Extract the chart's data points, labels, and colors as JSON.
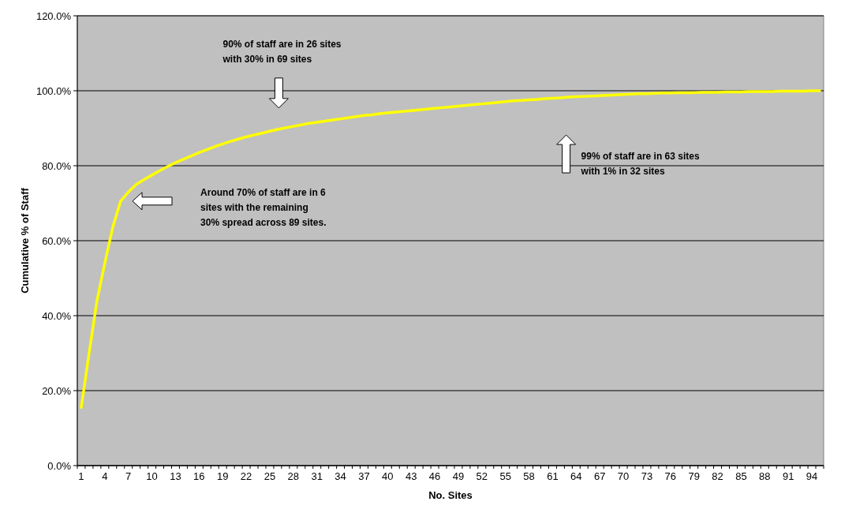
{
  "chart_data": {
    "type": "line",
    "xlabel": "No. Sites",
    "ylabel": "Cumulative % of Staff",
    "categories": [
      "1",
      null,
      null,
      "4",
      null,
      null,
      "7",
      null,
      null,
      "10",
      null,
      null,
      "13",
      null,
      null,
      "16",
      null,
      null,
      "19",
      null,
      null,
      "22",
      null,
      null,
      "25",
      null,
      null,
      "28",
      null,
      null,
      "31",
      null,
      null,
      "34",
      null,
      null,
      "37",
      null,
      null,
      "40",
      null,
      null,
      "43",
      null,
      null,
      "46",
      null,
      null,
      "49",
      null,
      null,
      "52",
      null,
      null,
      "55",
      null,
      null,
      "58",
      null,
      null,
      "61",
      null,
      null,
      "64",
      null,
      null,
      "67",
      null,
      null,
      "70",
      null,
      null,
      "73",
      null,
      null,
      "76",
      null,
      null,
      "79",
      null,
      null,
      "82",
      null,
      null,
      "85",
      null,
      null,
      "88",
      null,
      null,
      "91",
      null,
      null,
      "94",
      null
    ],
    "series": [
      {
        "color": "#ffff00",
        "values": [
          15.5,
          30,
          44,
          54,
          63.5,
          70.5,
          73,
          75,
          76.3,
          77.5,
          78.7,
          79.8,
          80.8,
          81.7,
          82.6,
          83.5,
          84.3,
          85.1,
          85.8,
          86.5,
          87.1,
          87.7,
          88.2,
          88.7,
          89.2,
          89.7,
          90.1,
          90.5,
          90.9,
          91.3,
          91.6,
          91.9,
          92.2,
          92.5,
          92.8,
          93.1,
          93.4,
          93.6,
          93.9,
          94.1,
          94.3,
          94.5,
          94.7,
          94.9,
          95.1,
          95.3,
          95.5,
          95.7,
          95.9,
          96.1,
          96.3,
          96.5,
          96.7,
          96.9,
          97.1,
          97.3,
          97.4,
          97.6,
          97.7,
          97.9,
          98,
          98.1,
          98.3,
          98.4,
          98.5,
          98.6,
          98.7,
          98.8,
          98.9,
          99,
          99.1,
          99.2,
          99.2,
          99.3,
          99.4,
          99.4,
          99.5,
          99.5,
          99.5,
          99.6,
          99.6,
          99.6,
          99.7,
          99.7,
          99.7,
          99.8,
          99.8,
          99.8,
          99.8,
          99.9,
          99.9,
          99.9,
          99.9,
          100,
          100
        ]
      }
    ],
    "ylim": [
      0,
      120
    ],
    "yticks": [
      {
        "value": 0,
        "label": "0.0%"
      },
      {
        "value": 20,
        "label": "20.0%"
      },
      {
        "value": 40,
        "label": "40.0%"
      },
      {
        "value": 60,
        "label": "60.0%"
      },
      {
        "value": 80,
        "label": "80.0%"
      },
      {
        "value": 100,
        "label": "100.0%"
      },
      {
        "value": 120,
        "label": "120.0%"
      }
    ],
    "grid": "y",
    "marker": "none",
    "line_style": "solid",
    "annotations": [
      "90% of staff are in 26 sites\nwith 30% in 69 sites",
      "Around 70% of staff are in 6\nsites with the remaining\n30% spread across 89 sites.",
      "99% of staff are in 63 sites\nwith 1% in 32 sites"
    ]
  }
}
